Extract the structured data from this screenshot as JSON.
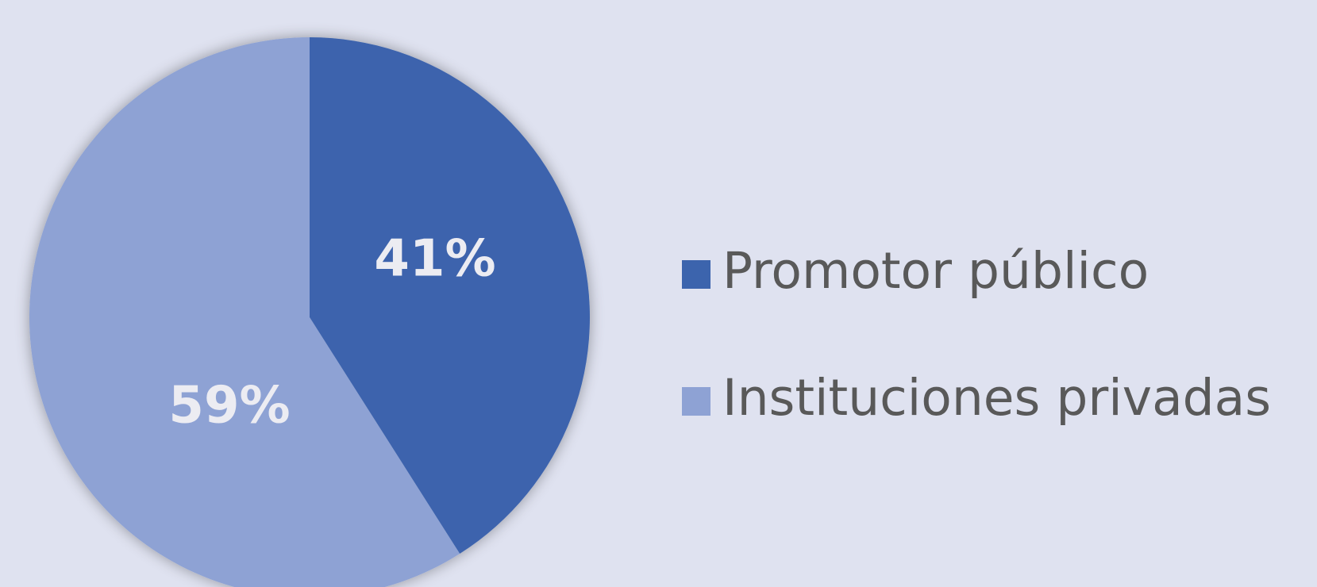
{
  "chart_data": {
    "type": "pie",
    "categories": [
      "Promotor público",
      "Instituciones privadas"
    ],
    "values": [
      41,
      59
    ],
    "value_labels": [
      "41%",
      "59%"
    ],
    "colors": [
      "#3c64ad",
      "#8ea2d4"
    ],
    "legend": "right"
  }
}
